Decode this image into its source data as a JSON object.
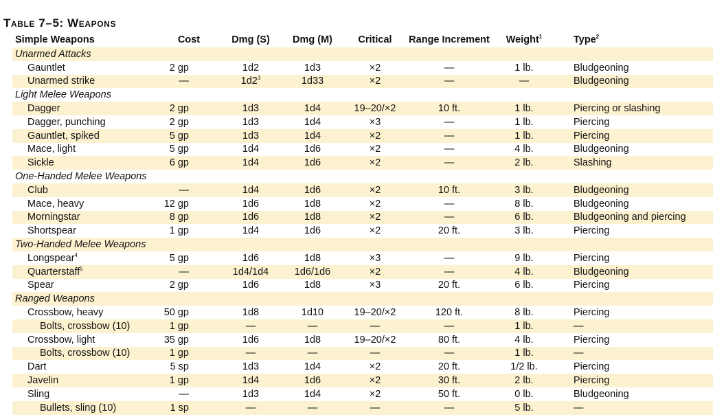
{
  "title": "Table 7–5: Weapons",
  "headers": {
    "name": "Simple Weapons",
    "cost": "Cost",
    "dmg_s": "Dmg (S)",
    "dmg_m": "Dmg (M)",
    "critical": "Critical",
    "range": "Range Increment",
    "weight": "Weight",
    "weight_sup": "1",
    "type": "Type",
    "type_sup": "2"
  },
  "rows": [
    {
      "kind": "sec",
      "name": "Unarmed Attacks"
    },
    {
      "kind": "item",
      "name": "Gauntlet",
      "cost": "2 gp",
      "dmg_s": "1d2",
      "dmg_m": "1d3",
      "critical": "×2",
      "range": "—",
      "weight": "1 lb.",
      "type": "Bludgeoning"
    },
    {
      "kind": "item",
      "name": "Unarmed strike",
      "cost": "—",
      "dmg_s": "1d2",
      "dmg_s_sup": "3",
      "dmg_m": "1d33",
      "critical": "×2",
      "range": "—",
      "weight": "—",
      "type": "Bludgeoning"
    },
    {
      "kind": "sec",
      "name": "Light Melee Weapons"
    },
    {
      "kind": "item",
      "name": "Dagger",
      "cost": "2 gp",
      "dmg_s": "1d3",
      "dmg_m": "1d4",
      "critical": "19–20/×2",
      "range": "10 ft.",
      "weight": "1 lb.",
      "type": "Piercing or slashing"
    },
    {
      "kind": "item",
      "name": "Dagger, punching",
      "cost": "2 gp",
      "dmg_s": "1d3",
      "dmg_m": "1d4",
      "critical": "×3",
      "range": "—",
      "weight": "1 lb.",
      "type": "Piercing"
    },
    {
      "kind": "item",
      "name": "Gauntlet, spiked",
      "cost": "5 gp",
      "dmg_s": "1d3",
      "dmg_m": "1d4",
      "critical": "×2",
      "range": "—",
      "weight": "1 lb.",
      "type": "Piercing"
    },
    {
      "kind": "item",
      "name": "Mace, light",
      "cost": "5 gp",
      "dmg_s": "1d4",
      "dmg_m": "1d6",
      "critical": "×2",
      "range": "—",
      "weight": "4 lb.",
      "type": "Bludgeoning"
    },
    {
      "kind": "item",
      "name": "Sickle",
      "cost": "6 gp",
      "dmg_s": "1d4",
      "dmg_m": "1d6",
      "critical": "×2",
      "range": "—",
      "weight": "2 lb.",
      "type": "Slashing"
    },
    {
      "kind": "sec",
      "name": "One-Handed Melee Weapons"
    },
    {
      "kind": "item",
      "name": "Club",
      "cost": "—",
      "dmg_s": "1d4",
      "dmg_m": "1d6",
      "critical": "×2",
      "range": "10 ft.",
      "weight": "3 lb.",
      "type": "Bludgeoning"
    },
    {
      "kind": "item",
      "name": "Mace, heavy",
      "cost": "12 gp",
      "dmg_s": "1d6",
      "dmg_m": "1d8",
      "critical": "×2",
      "range": "—",
      "weight": "8 lb.",
      "type": "Bludgeoning"
    },
    {
      "kind": "item",
      "name": "Morningstar",
      "cost": "8 gp",
      "dmg_s": "1d6",
      "dmg_m": "1d8",
      "critical": "×2",
      "range": "—",
      "weight": "6 lb.",
      "type": "Bludgeoning and piercing"
    },
    {
      "kind": "item",
      "name": "Shortspear",
      "cost": "1 gp",
      "dmg_s": "1d4",
      "dmg_m": "1d6",
      "critical": "×2",
      "range": "20 ft.",
      "weight": "3 lb.",
      "type": "Piercing"
    },
    {
      "kind": "sec",
      "name": "Two-Handed Melee Weapons"
    },
    {
      "kind": "item",
      "name": "Longspear",
      "name_sup": "4",
      "cost": "5 gp",
      "dmg_s": "1d6",
      "dmg_m": "1d8",
      "critical": "×3",
      "range": "—",
      "weight": "9 lb.",
      "type": "Piercing"
    },
    {
      "kind": "item",
      "name": "Quarterstaff",
      "name_sup": "5",
      "cost": "—",
      "dmg_s": "1d4/1d4",
      "dmg_m": "1d6/1d6",
      "critical": "×2",
      "range": "—",
      "weight": "4 lb.",
      "type": "Bludgeoning"
    },
    {
      "kind": "item",
      "name": "Spear",
      "cost": "2 gp",
      "dmg_s": "1d6",
      "dmg_m": "1d8",
      "critical": "×3",
      "range": "20 ft.",
      "weight": "6 lb.",
      "type": "Piercing"
    },
    {
      "kind": "sec",
      "name": "Ranged Weapons"
    },
    {
      "kind": "item",
      "name": "Crossbow, heavy",
      "cost": "50 gp",
      "dmg_s": "1d8",
      "dmg_m": "1d10",
      "critical": "19–20/×2",
      "range": "120 ft.",
      "weight": "8 lb.",
      "type": "Piercing"
    },
    {
      "kind": "sub",
      "name": "Bolts, crossbow (10)",
      "cost": "1 gp",
      "dmg_s": "—",
      "dmg_m": "—",
      "critical": "—",
      "range": "—",
      "weight": "1 lb.",
      "type": "—"
    },
    {
      "kind": "item",
      "name": "Crossbow, light",
      "cost": "35 gp",
      "dmg_s": "1d6",
      "dmg_m": "1d8",
      "critical": "19–20/×2",
      "range": "80 ft.",
      "weight": "4 lb.",
      "type": "Piercing"
    },
    {
      "kind": "sub",
      "name": "Bolts, crossbow (10)",
      "cost": "1 gp",
      "dmg_s": "—",
      "dmg_m": "—",
      "critical": "—",
      "range": "—",
      "weight": "1 lb.",
      "type": "—"
    },
    {
      "kind": "item",
      "name": "Dart",
      "cost": "5 sp",
      "dmg_s": "1d3",
      "dmg_m": "1d4",
      "critical": "×2",
      "range": "20 ft.",
      "weight": "1/2 lb.",
      "type": "Piercing"
    },
    {
      "kind": "item",
      "name": "Javelin",
      "cost": "1 gp",
      "dmg_s": "1d4",
      "dmg_m": "1d6",
      "critical": "×2",
      "range": "30 ft.",
      "weight": "2 lb.",
      "type": "Piercing"
    },
    {
      "kind": "item",
      "name": "Sling",
      "cost": "—",
      "dmg_s": "1d3",
      "dmg_m": "1d4",
      "critical": "×2",
      "range": "50 ft.",
      "weight": "0 lb.",
      "type": "Bludgeoning"
    },
    {
      "kind": "sub",
      "name": "Bullets, sling (10)",
      "cost": "1 sp",
      "dmg_s": "—",
      "dmg_m": "—",
      "critical": "—",
      "range": "—",
      "weight": "5 lb.",
      "type": "—"
    }
  ]
}
